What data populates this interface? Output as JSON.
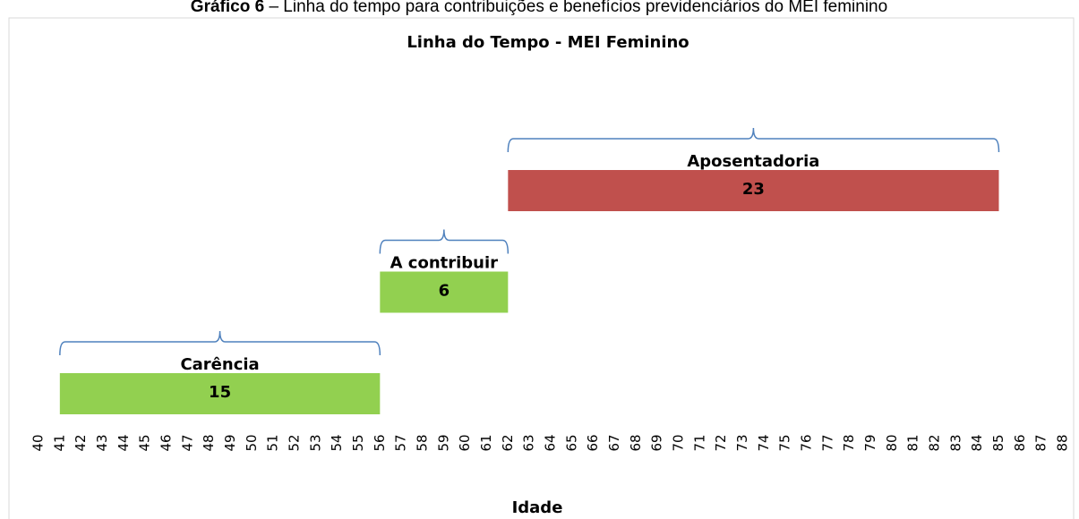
{
  "caption": {
    "label": "Gráfico 6",
    "text": "– Linha do tempo para contribuições e benefícios previdenciários do MEI feminino"
  },
  "chart_data": {
    "type": "bar",
    "orientation": "horizontal",
    "floating": true,
    "title": "Linha do Tempo - MEI Feminino",
    "x_label": "Idade",
    "bars": [
      {
        "label": "Carência",
        "start": 41,
        "value": 15,
        "color": "#92d050"
      },
      {
        "label": "A contribuir",
        "start": 56,
        "value": 6,
        "color": "#92d050"
      },
      {
        "label": "Aposentadoria",
        "start": 62,
        "value": 23,
        "color": "#c0504d"
      }
    ],
    "bracket_color": "#4f81bd",
    "xlim": [
      40,
      88
    ],
    "xticks": [
      40,
      41,
      42,
      43,
      44,
      45,
      46,
      47,
      48,
      49,
      50,
      51,
      52,
      53,
      54,
      55,
      56,
      57,
      58,
      59,
      60,
      61,
      62,
      63,
      64,
      65,
      66,
      67,
      68,
      69,
      70,
      71,
      72,
      73,
      74,
      75,
      76,
      77,
      78,
      79,
      80,
      81,
      82,
      83,
      84,
      85,
      86,
      87,
      88
    ]
  }
}
